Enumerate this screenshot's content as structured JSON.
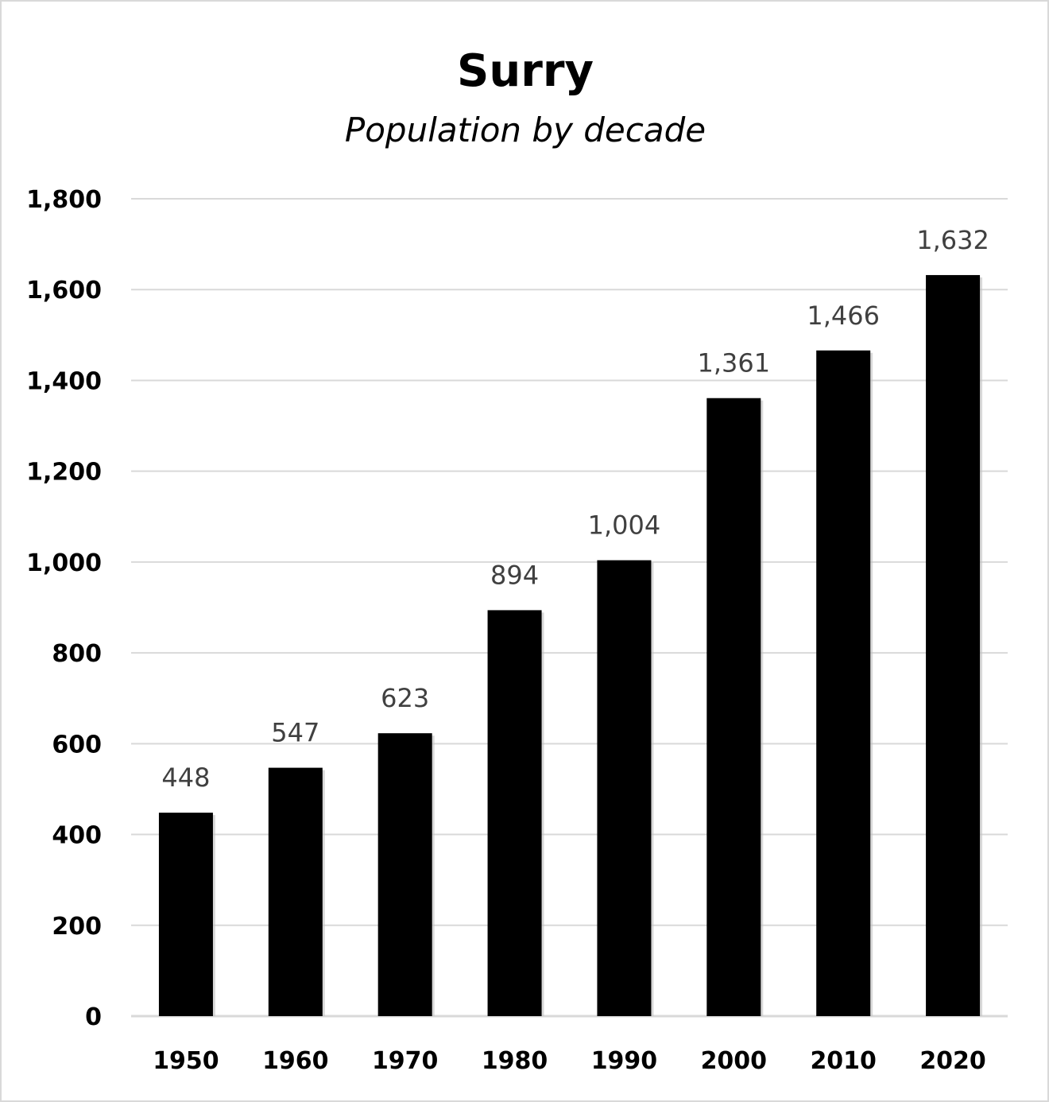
{
  "chart_data": {
    "type": "bar",
    "title": "Surry",
    "subtitle": "Population by decade",
    "xlabel": "",
    "ylabel": "",
    "categories": [
      "1950",
      "1960",
      "1970",
      "1980",
      "1990",
      "2000",
      "2010",
      "2020"
    ],
    "values": [
      448,
      547,
      623,
      894,
      1004,
      1361,
      1466,
      1632
    ],
    "data_labels": [
      "448",
      "547",
      "623",
      "894",
      "1,004",
      "1,361",
      "1,466",
      "1,632"
    ],
    "ylim": [
      0,
      1800
    ],
    "yticks": [
      "0",
      "200",
      "400",
      "600",
      "800",
      "1,000",
      "1,200",
      "1,400",
      "1,600",
      "1,800"
    ],
    "grid": true,
    "legend": "none",
    "bar_color": "#000000",
    "grid_color": "#d9d9d9"
  }
}
